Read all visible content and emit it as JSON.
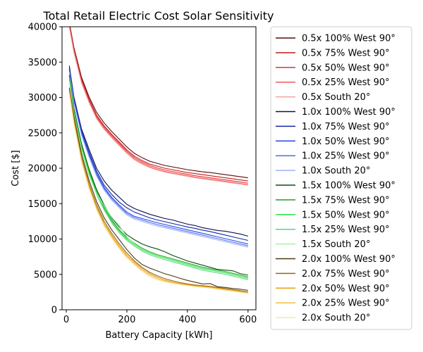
{
  "chart_data": {
    "type": "line",
    "title": "Total Retail Electric Cost Solar Sensitivity",
    "xlabel": "Battery Capacity [kWh]",
    "ylabel": "Cost [$]",
    "xlim": [
      -14,
      626
    ],
    "ylim": [
      0,
      40000
    ],
    "xticks": [
      0,
      200,
      400,
      600
    ],
    "yticks": [
      0,
      5000,
      10000,
      15000,
      20000,
      25000,
      30000,
      35000,
      40000
    ],
    "grid": false,
    "legend_position": "outside-right",
    "x": [
      10,
      25,
      50,
      75,
      100,
      125,
      150,
      175,
      200,
      225,
      250,
      275,
      300,
      325,
      350,
      375,
      400,
      425,
      450,
      475,
      500,
      525,
      550,
      575,
      600
    ],
    "series": [
      {
        "name": "0.5x 100% West 90°",
        "color": "#5c0b0b",
        "values": [
          40600,
          37100,
          32900,
          30100,
          27900,
          26400,
          25200,
          24100,
          23000,
          22100,
          21500,
          21000,
          20700,
          20400,
          20200,
          20000,
          19800,
          19650,
          19500,
          19400,
          19250,
          19100,
          18950,
          18800,
          18650
        ]
      },
      {
        "name": "0.5x 75% West 90°",
        "color": "#c81a1a",
        "values": [
          40400,
          36900,
          32600,
          29800,
          27500,
          26000,
          24800,
          23700,
          22600,
          21700,
          21100,
          20600,
          20300,
          20000,
          19800,
          19600,
          19400,
          19250,
          19100,
          18950,
          18800,
          18650,
          18500,
          18350,
          18200
        ]
      },
      {
        "name": "0.5x 50% West 90°",
        "color": "#e03434",
        "values": [
          40200,
          36700,
          32400,
          29600,
          27300,
          25800,
          24600,
          23500,
          22400,
          21500,
          20900,
          20400,
          20050,
          19750,
          19550,
          19350,
          19150,
          18950,
          18800,
          18650,
          18500,
          18350,
          18200,
          18050,
          17900
        ]
      },
      {
        "name": "0.5x 25% West 90°",
        "color": "#f05a5a",
        "values": [
          40000,
          36500,
          32200,
          29400,
          27100,
          25600,
          24400,
          23300,
          22200,
          21300,
          20700,
          20200,
          19850,
          19550,
          19350,
          19150,
          18950,
          18750,
          18600,
          18450,
          18300,
          18150,
          18000,
          17850,
          17700
        ]
      },
      {
        "name": "0.5x South 20°",
        "color": "#f7a0a0",
        "values": [
          39900,
          36400,
          32100,
          29300,
          27000,
          25500,
          24300,
          23200,
          22100,
          21200,
          20600,
          20100,
          19750,
          19450,
          19250,
          19050,
          18850,
          18650,
          18500,
          18350,
          18200,
          18050,
          17900,
          17750,
          17600
        ]
      },
      {
        "name": "1.0x 100% West 90°",
        "color": "#0a1350",
        "values": [
          34500,
          30100,
          25600,
          22700,
          20000,
          18200,
          16900,
          15900,
          14900,
          14300,
          13900,
          13500,
          13200,
          12900,
          12700,
          12400,
          12100,
          11900,
          11600,
          11400,
          11200,
          11100,
          10900,
          10700,
          10400
        ]
      },
      {
        "name": "1.0x 75% West 90°",
        "color": "#1426a6",
        "values": [
          34200,
          29800,
          25300,
          22300,
          19600,
          17600,
          16300,
          15200,
          14400,
          13800,
          13400,
          13000,
          12700,
          12450,
          12200,
          11950,
          11700,
          11500,
          11250,
          11050,
          10800,
          10550,
          10300,
          10050,
          9800
        ]
      },
      {
        "name": "1.0x 50% West 90°",
        "color": "#2547e8",
        "values": [
          34000,
          29600,
          25100,
          22000,
          19300,
          17300,
          15900,
          14800,
          13800,
          13200,
          12900,
          12600,
          12300,
          12050,
          11800,
          11550,
          11300,
          11050,
          10800,
          10550,
          10300,
          10050,
          9800,
          9550,
          9300
        ]
      },
      {
        "name": "1.0x 25% West 90°",
        "color": "#4d6df2",
        "values": [
          33800,
          29400,
          24900,
          21800,
          19100,
          17100,
          15700,
          14600,
          13600,
          13000,
          12700,
          12350,
          12050,
          11800,
          11550,
          11300,
          11050,
          10800,
          10550,
          10300,
          10050,
          9800,
          9550,
          9300,
          9050
        ]
      },
      {
        "name": "1.0x South 20°",
        "color": "#9fb3f5",
        "values": [
          33600,
          29200,
          24700,
          21600,
          18900,
          16900,
          15500,
          14400,
          13400,
          12800,
          12500,
          12150,
          11850,
          11600,
          11350,
          11100,
          10850,
          10600,
          10350,
          10100,
          9850,
          9600,
          9350,
          9100,
          8850
        ]
      },
      {
        "name": "1.5x 100% West 90°",
        "color": "#0d4d12",
        "values": [
          33200,
          28500,
          23500,
          19900,
          17000,
          14800,
          13000,
          11700,
          10600,
          9900,
          9300,
          8900,
          8600,
          8200,
          7700,
          7300,
          6900,
          6600,
          6300,
          6000,
          5700,
          5600,
          5500,
          5100,
          4900
        ]
      },
      {
        "name": "1.5x 75% West 90°",
        "color": "#1e9e2a",
        "values": [
          32900,
          28200,
          23200,
          19600,
          16700,
          14500,
          12700,
          11300,
          10200,
          9400,
          8700,
          8200,
          7800,
          7500,
          7200,
          6900,
          6600,
          6300,
          6000,
          5800,
          5600,
          5400,
          5150,
          4900,
          4650
        ]
      },
      {
        "name": "1.5x 50% West 90°",
        "color": "#2be64a",
        "values": [
          32700,
          28000,
          23000,
          19400,
          16500,
          14300,
          12500,
          11100,
          10000,
          9200,
          8500,
          8000,
          7600,
          7300,
          7000,
          6700,
          6400,
          6100,
          5800,
          5600,
          5400,
          5200,
          4950,
          4700,
          4450
        ]
      },
      {
        "name": "1.5x 25% West 90°",
        "color": "#5ad67e",
        "values": [
          32500,
          27800,
          22800,
          19200,
          16300,
          14100,
          12300,
          10900,
          9800,
          9000,
          8300,
          7800,
          7400,
          7100,
          6800,
          6500,
          6200,
          5900,
          5600,
          5400,
          5200,
          5000,
          4750,
          4500,
          4250
        ]
      },
      {
        "name": "1.5x South 20°",
        "color": "#a6f3a6",
        "values": [
          32300,
          27600,
          22600,
          19000,
          16400,
          14700,
          13100,
          11900,
          10300,
          9300,
          8600,
          8100,
          7700,
          7400,
          7100,
          6800,
          6500,
          6200,
          5900,
          5700,
          5500,
          5300,
          5050,
          4800,
          4550
        ]
      },
      {
        "name": "2.0x 100% West 90°",
        "color": "#4a3a10",
        "values": [
          31400,
          27400,
          22100,
          18300,
          15300,
          13000,
          11300,
          9900,
          8500,
          7300,
          6400,
          5900,
          5500,
          5100,
          4800,
          4450,
          4150,
          3900,
          3650,
          3700,
          3250,
          3150,
          3000,
          2900,
          2750
        ]
      },
      {
        "name": "2.0x 75% West 90°",
        "color": "#9a6410",
        "values": [
          31100,
          27000,
          21600,
          17800,
          14800,
          12500,
          10800,
          9300,
          8000,
          6900,
          6000,
          5300,
          4800,
          4400,
          4100,
          3850,
          3650,
          3500,
          3400,
          3300,
          3150,
          3000,
          2850,
          2700,
          2550
        ]
      },
      {
        "name": "2.0x 50% West 90°",
        "color": "#e8a010",
        "values": [
          30900,
          26700,
          21300,
          17500,
          14500,
          12200,
          10500,
          9000,
          7700,
          6700,
          5800,
          5100,
          4600,
          4200,
          3900,
          3700,
          3550,
          3400,
          3300,
          3200,
          3050,
          2900,
          2750,
          2600,
          2450
        ]
      },
      {
        "name": "2.0x 25% West 90°",
        "color": "#f2be45",
        "values": [
          30700,
          26500,
          21100,
          17300,
          14300,
          12000,
          10300,
          8800,
          7500,
          6500,
          5600,
          4900,
          4400,
          4050,
          3800,
          3600,
          3450,
          3300,
          3200,
          3100,
          2950,
          2800,
          2650,
          2500,
          2350
        ]
      },
      {
        "name": "2.0x South 20°",
        "color": "#fae8a8",
        "values": [
          30500,
          26300,
          20900,
          17100,
          14100,
          11800,
          10100,
          8600,
          7300,
          6300,
          5400,
          4700,
          4250,
          3950,
          3750,
          3550,
          3400,
          3250,
          3150,
          3050,
          2900,
          2750,
          2600,
          2450,
          2300
        ]
      }
    ]
  }
}
